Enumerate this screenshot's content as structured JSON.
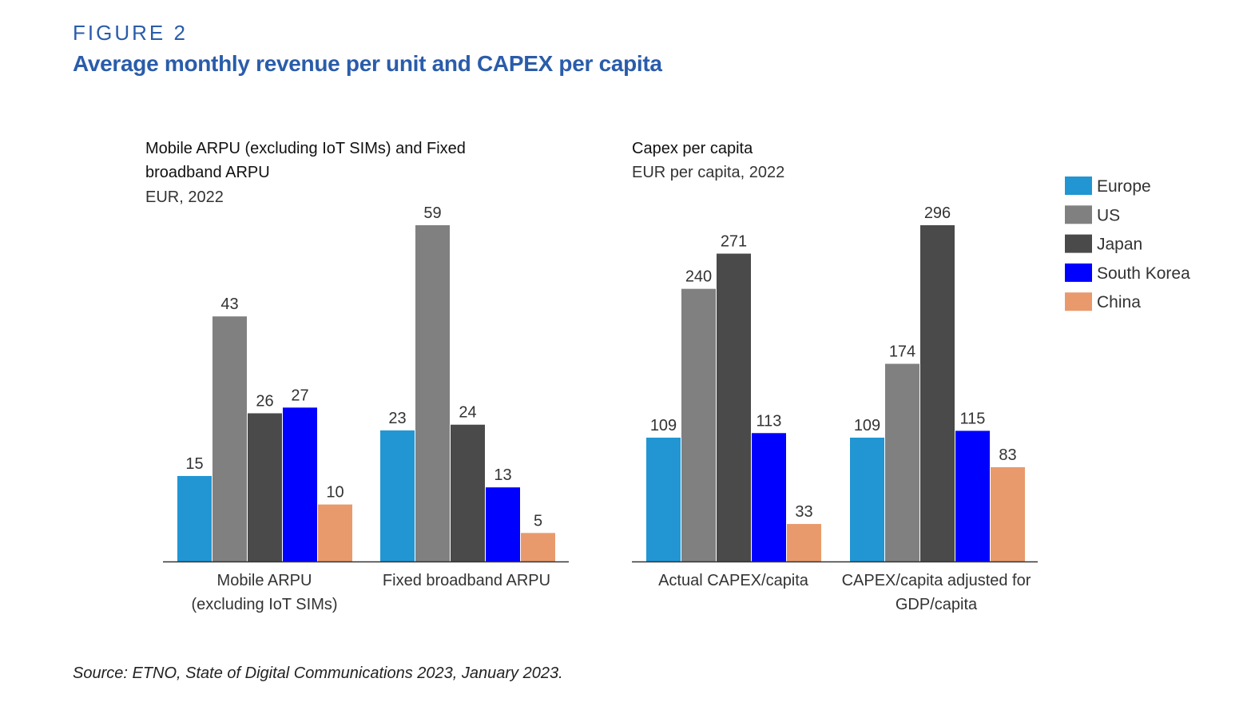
{
  "figure_label": "FIGURE 2",
  "figure_title": "Average monthly revenue per unit and CAPEX per capita",
  "source": "Source: ETNO, State of Digital Communications 2023, January 2023.",
  "legend": [
    {
      "name": "Europe",
      "color": "#2196d3"
    },
    {
      "name": "US",
      "color": "#808080"
    },
    {
      "name": "Japan",
      "color": "#4a4a4a"
    },
    {
      "name": "South Korea",
      "color": "#0000ff"
    },
    {
      "name": "China",
      "color": "#e89a6c"
    }
  ],
  "chart_data": [
    {
      "type": "bar",
      "title": "Mobile ARPU (excluding IoT SIMs) and Fixed broadband ARPU",
      "subtitle": "EUR, 2022",
      "categories": [
        "Mobile ARPU (excluding IoT SIMs)",
        "Fixed broadband ARPU"
      ],
      "series": [
        {
          "name": "Europe",
          "values": [
            15,
            23
          ]
        },
        {
          "name": "US",
          "values": [
            43,
            59
          ]
        },
        {
          "name": "Japan",
          "values": [
            26,
            24
          ]
        },
        {
          "name": "South Korea",
          "values": [
            27,
            13
          ]
        },
        {
          "name": "China",
          "values": [
            10,
            5
          ]
        }
      ],
      "ylim": [
        0,
        59
      ],
      "grid": false,
      "legend": "right"
    },
    {
      "type": "bar",
      "title": "Capex per capita",
      "subtitle": "EUR per capita, 2022",
      "categories": [
        "Actual CAPEX/capita",
        "CAPEX/capita adjusted for GDP/capita"
      ],
      "series": [
        {
          "name": "Europe",
          "values": [
            109,
            109
          ]
        },
        {
          "name": "US",
          "values": [
            240,
            174
          ]
        },
        {
          "name": "Japan",
          "values": [
            271,
            296
          ]
        },
        {
          "name": "South Korea",
          "values": [
            113,
            115
          ]
        },
        {
          "name": "China",
          "values": [
            33,
            83
          ]
        }
      ],
      "ylim": [
        0,
        296
      ],
      "grid": false,
      "legend": "right"
    }
  ]
}
